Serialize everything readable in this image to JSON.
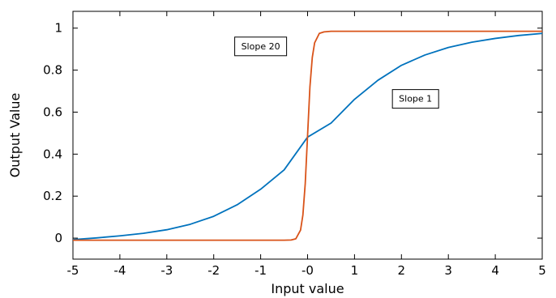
{
  "chart_data": {
    "type": "line",
    "title": "",
    "xlabel": "Input value",
    "ylabel": "Output Value",
    "xlim": [
      -5,
      5
    ],
    "ylim": [
      -0.1,
      1.08
    ],
    "grid": false,
    "x_ticks": [
      -5,
      -4,
      -3,
      -2,
      -1,
      0,
      1,
      2,
      3,
      4,
      5
    ],
    "x_tick_labels": [
      "-5",
      "-4",
      "-3",
      "-2",
      "-1",
      "-0",
      "1",
      "2",
      "3",
      "4",
      "5"
    ],
    "y_ticks": [
      0,
      0.2,
      0.4,
      0.6,
      0.8,
      1
    ],
    "y_tick_labels": [
      "0",
      "0.2",
      "0.4",
      "0.6",
      "0.8",
      "1"
    ],
    "series": [
      {
        "color": "#0072bd",
        "x": [
          -5,
          -4.5,
          -4,
          -3.5,
          -3,
          -2.5,
          -2,
          -1.5,
          -1,
          -0.5,
          0,
          0.5,
          1,
          1.5,
          2,
          2.5,
          3,
          3.5,
          4,
          4.5,
          5
        ],
        "y": [
          -0.007,
          0.001,
          0.011,
          0.023,
          0.04,
          0.066,
          0.104,
          0.159,
          0.233,
          0.325,
          0.481,
          0.548,
          0.661,
          0.752,
          0.823,
          0.872,
          0.908,
          0.933,
          0.951,
          0.965,
          0.975
        ]
      },
      {
        "color": "#d95319",
        "x": [
          -5,
          -0.5,
          -0.35,
          -0.25,
          -0.15,
          -0.1,
          -0.05,
          0,
          0.05,
          0.1,
          0.15,
          0.25,
          0.35,
          0.5,
          5
        ],
        "y": [
          -0.01,
          -0.01,
          -0.009,
          -0.003,
          0.038,
          0.11,
          0.26,
          0.49,
          0.72,
          0.86,
          0.93,
          0.975,
          0.982,
          0.985,
          0.985
        ]
      }
    ],
    "annotations": [
      {
        "text": "Slope 20",
        "x": -1.0,
        "y": 0.915
      },
      {
        "text": "Slope 1",
        "x": 2.3,
        "y": 0.665
      }
    ]
  }
}
